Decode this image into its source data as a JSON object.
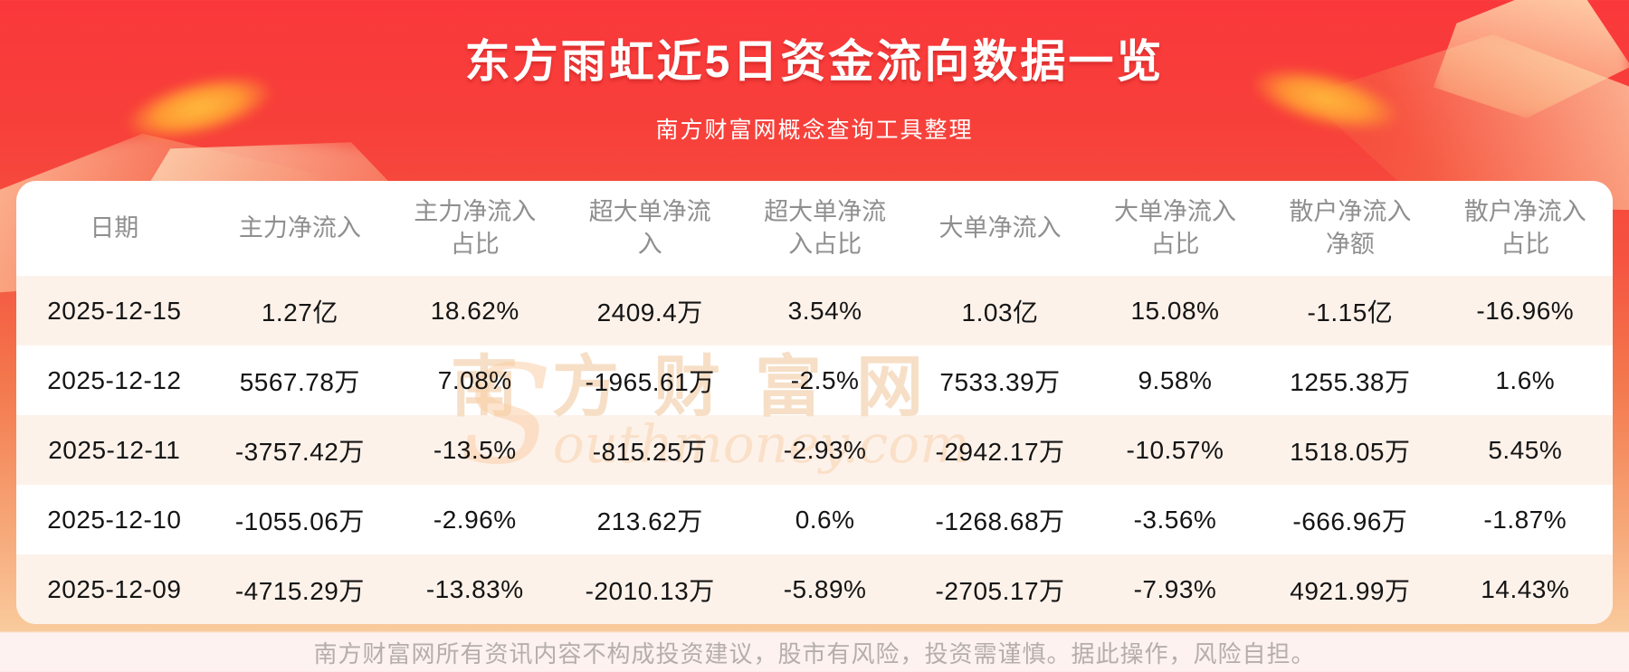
{
  "page": {
    "title": "东方雨虹近5日资金流向数据一览",
    "subtitle": "南方财富网概念查询工具整理",
    "footer": "南方财富网所有资讯内容不构成投资建议，股市有风险，投资需谨慎。据此操作，风险自担。"
  },
  "watermark": {
    "line1": "南方财富网",
    "line2_big_letter": "S",
    "line2_rest": "outhmoney.com"
  },
  "colors": {
    "bg_top_red": "#fa383b",
    "bg_bottom_orange": "#f9cb9d",
    "footer_band": "#fdf2f0",
    "card_bg": "#ffffff",
    "row_alt_bg": "#fdf2ea",
    "header_text": "#8f8f8f",
    "cell_text": "#141414",
    "title_text": "#ffffff",
    "footer_text": "#b5aeaa",
    "gold_glow": "#ffc33e"
  },
  "chart_data": {
    "type": "table",
    "title": "东方雨虹近5日资金流向数据一览",
    "columns": [
      "日期",
      "主力净流入",
      "主力净流入占比",
      "超大单净流入",
      "超大单净流入占比",
      "大单净流入",
      "大单净流入占比",
      "散户净流入净额",
      "散户净流入占比"
    ],
    "rows": [
      [
        "2025-12-15",
        "1.27亿",
        "18.62%",
        "2409.4万",
        "3.54%",
        "1.03亿",
        "15.08%",
        "-1.15亿",
        "-16.96%"
      ],
      [
        "2025-12-12",
        "5567.78万",
        "7.08%",
        "-1965.61万",
        "-2.5%",
        "7533.39万",
        "9.58%",
        "1255.38万",
        "1.6%"
      ],
      [
        "2025-12-11",
        "-3757.42万",
        "-13.5%",
        "-815.25万",
        "-2.93%",
        "-2942.17万",
        "-10.57%",
        "1518.05万",
        "5.45%"
      ],
      [
        "2025-12-10",
        "-1055.06万",
        "-2.96%",
        "213.62万",
        "0.6%",
        "-1268.68万",
        "-3.56%",
        "-666.96万",
        "-1.87%"
      ],
      [
        "2025-12-09",
        "-4715.29万",
        "-13.83%",
        "-2010.13万",
        "-5.89%",
        "-2705.17万",
        "-7.93%",
        "4921.99万",
        "14.43%"
      ]
    ],
    "row_striping": "odd rows (1st,3rd,5th) light peach #fdf2ea, others white",
    "legend_position": "none",
    "grid": false
  }
}
